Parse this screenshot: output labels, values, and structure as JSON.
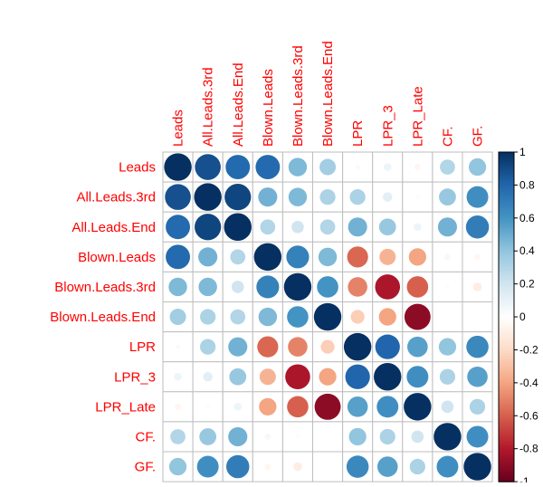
{
  "chart_data": {
    "type": "heatmap",
    "style": "corrplot-circle",
    "variables": [
      "Leads",
      "All.Leads.3rd",
      "All.Leads.End",
      "Blown.Leads",
      "Blown.Leads.3rd",
      "Blown.Leads.End",
      "LPR",
      "LPR_3",
      "LPR_Late",
      "CF.",
      "GF."
    ],
    "matrix": [
      [
        1.0,
        0.88,
        0.78,
        0.78,
        0.45,
        0.35,
        0.03,
        0.08,
        -0.05,
        0.3,
        0.4
      ],
      [
        0.88,
        1.0,
        0.92,
        0.48,
        0.45,
        0.32,
        0.32,
        0.12,
        0.02,
        0.38,
        0.62
      ],
      [
        0.78,
        0.92,
        1.0,
        0.3,
        0.2,
        0.3,
        0.48,
        0.38,
        0.08,
        0.48,
        0.7
      ],
      [
        0.78,
        0.48,
        0.3,
        1.0,
        0.68,
        0.45,
        -0.58,
        -0.35,
        -0.4,
        0.05,
        -0.05
      ],
      [
        0.45,
        0.45,
        0.2,
        0.68,
        1.0,
        0.6,
        -0.5,
        -0.82,
        -0.6,
        0.02,
        -0.1
      ],
      [
        0.35,
        0.32,
        0.3,
        0.45,
        0.6,
        1.0,
        -0.25,
        -0.4,
        -0.9,
        0.01,
        0.0
      ],
      [
        0.03,
        0.32,
        0.48,
        -0.58,
        -0.5,
        -0.25,
        1.0,
        0.8,
        0.55,
        0.4,
        0.65
      ],
      [
        0.08,
        0.12,
        0.38,
        -0.35,
        -0.82,
        -0.4,
        0.8,
        1.0,
        0.62,
        0.32,
        0.55
      ],
      [
        -0.05,
        0.02,
        0.08,
        -0.4,
        -0.6,
        -0.9,
        0.55,
        0.62,
        1.0,
        0.2,
        0.32
      ],
      [
        0.3,
        0.38,
        0.48,
        0.05,
        0.02,
        0.01,
        0.4,
        0.32,
        0.2,
        1.0,
        0.62
      ],
      [
        0.4,
        0.62,
        0.7,
        -0.05,
        -0.1,
        0.0,
        0.65,
        0.55,
        0.32,
        0.62,
        1.0
      ]
    ],
    "colorbar": {
      "range": [
        -1,
        1
      ],
      "ticks": [
        "1",
        "0.8",
        "0.6",
        "0.4",
        "0.2",
        "0",
        "-0.2",
        "-0.4",
        "-0.6",
        "-0.8",
        "-1"
      ],
      "tick_values": [
        1,
        0.8,
        0.6,
        0.4,
        0.2,
        0,
        -0.2,
        -0.4,
        -0.6,
        -0.8,
        -1
      ],
      "palette": [
        "#67001F",
        "#B2182B",
        "#D6604D",
        "#F4A582",
        "#FDDBC7",
        "#FFFFFF",
        "#D1E5F0",
        "#92C5DE",
        "#4393C3",
        "#2166AC",
        "#053061"
      ]
    },
    "label_color": "#FF0000",
    "grid_color": "#BEBEBE"
  }
}
